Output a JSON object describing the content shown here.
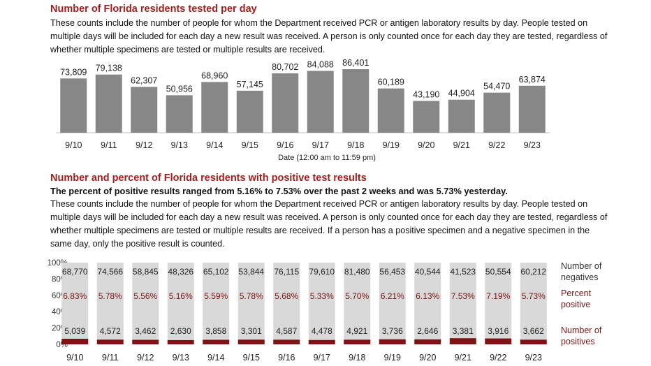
{
  "section1": {
    "title": "Number of Florida residents tested per day",
    "description": "These counts include the number of people for whom the Department received PCR or antigen laboratory results by day. People tested on multiple days will be included for each day a new result was received. A person is only counted once for each day they are tested, regardless of whether multiple specimens are tested or multiple results are received."
  },
  "section2": {
    "title": "Number and percent of Florida residents with positive test results",
    "summary": "The percent of positive results ranged from 5.16% to 7.53% over the past 2 weeks and was 5.73% yesterday.",
    "description": "These counts include the number of people for whom the Department received PCR or antigen laboratory results by day. People tested on multiple days will be included for each day a new result was received. A person is only counted once for each day they are tested, regardless of whether multiple specimens are tested or multiple results are received. If a person has a positive specimen and a negative specimen in the same day, only the positive result is counted."
  },
  "colors": {
    "title_red": "#a51d1d",
    "bar_gray": "#878787",
    "stack_light": "#d9d9d9",
    "positive_dark": "#7b1414",
    "axis": "#bfbfbf"
  },
  "chart_data": [
    {
      "type": "bar",
      "categories": [
        "9/10",
        "9/11",
        "9/12",
        "9/13",
        "9/14",
        "9/15",
        "9/16",
        "9/17",
        "9/18",
        "9/19",
        "9/20",
        "9/21",
        "9/22",
        "9/23"
      ],
      "values": [
        73809,
        79138,
        62307,
        50956,
        68960,
        57145,
        80702,
        84088,
        86401,
        60189,
        43190,
        44904,
        54470,
        63874
      ],
      "value_labels": [
        "73,809",
        "79,138",
        "62,307",
        "50,956",
        "68,960",
        "57,145",
        "80,702",
        "84,088",
        "86,401",
        "60,189",
        "43,190",
        "44,904",
        "54,470",
        "63,874"
      ],
      "xlabel": "Date (12:00 am to 11:59 pm)",
      "ylabel": "",
      "ylim": [
        0,
        95000
      ]
    },
    {
      "type": "bar",
      "stacked": "percent",
      "categories": [
        "9/10",
        "9/11",
        "9/12",
        "9/13",
        "9/14",
        "9/15",
        "9/16",
        "9/17",
        "9/18",
        "9/19",
        "9/20",
        "9/21",
        "9/22",
        "9/23"
      ],
      "series": [
        {
          "name": "Number of negatives",
          "values": [
            68770,
            74566,
            58845,
            48326,
            65102,
            53844,
            76115,
            79610,
            81480,
            56453,
            40544,
            41523,
            50554,
            60212
          ],
          "labels": [
            "68,770",
            "74,566",
            "58,845",
            "48,326",
            "65,102",
            "53,844",
            "76,115",
            "79,610",
            "81,480",
            "56,453",
            "40,544",
            "41,523",
            "50,554",
            "60,212"
          ]
        },
        {
          "name": "Number of positives",
          "values": [
            5039,
            4572,
            3462,
            2630,
            3858,
            3301,
            4587,
            4478,
            4921,
            3736,
            2646,
            3381,
            3916,
            3662
          ],
          "labels": [
            "5,039",
            "4,572",
            "3,462",
            "2,630",
            "3,858",
            "3,301",
            "4,587",
            "4,478",
            "4,921",
            "3,736",
            "2,646",
            "3,381",
            "3,916",
            "3,662"
          ]
        }
      ],
      "percent_positive": {
        "name": "Percent positive",
        "labels": [
          "6.83%",
          "5.78%",
          "5.56%",
          "5.16%",
          "5.59%",
          "5.78%",
          "5.68%",
          "5.33%",
          "5.70%",
          "6.21%",
          "6.13%",
          "7.53%",
          "7.19%",
          "5.73%"
        ]
      },
      "legend_labels": {
        "negatives": [
          "Number of",
          "negatives"
        ],
        "percent": [
          "Percent",
          "positive"
        ],
        "positives": [
          "Number of",
          "positives"
        ]
      },
      "ytick_labels": [
        "0%",
        "20%",
        "40%",
        "60%",
        "80%",
        "100%"
      ],
      "ylim": [
        0,
        100
      ]
    }
  ]
}
